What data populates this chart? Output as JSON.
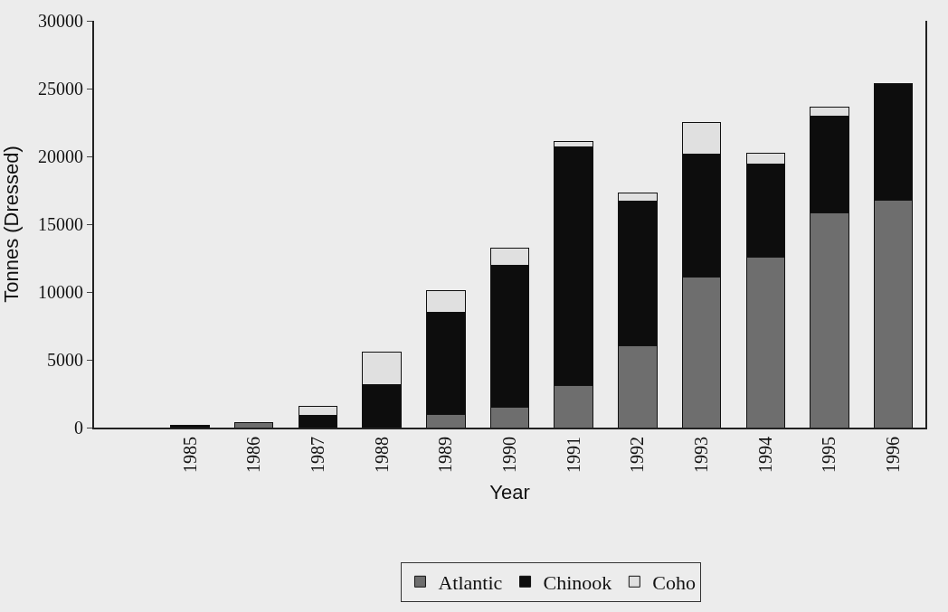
{
  "chart_data": {
    "type": "bar",
    "stacked": true,
    "xlabel": "Year",
    "ylabel": "Tonnes (Dressed)",
    "categories": [
      null,
      "1985",
      "1986",
      "1987",
      "1988",
      "1989",
      "1990",
      "1991",
      "1992",
      "1993",
      "1994",
      "1995",
      "1996"
    ],
    "series": [
      {
        "name": "Atlantic",
        "color": "#6e6e6e",
        "values": [
          null,
          null,
          400,
          null,
          null,
          1000,
          1500,
          3070,
          6050,
          11100,
          12600,
          15850,
          16800
        ]
      },
      {
        "name": "Chinook",
        "color": "#0d0d0d",
        "values": [
          null,
          150,
          null,
          900,
          3150,
          7500,
          10450,
          17630,
          10670,
          9100,
          6850,
          7100,
          8550
        ]
      },
      {
        "name": "Coho",
        "color": "#e0e0e0",
        "values": [
          null,
          null,
          null,
          650,
          2400,
          1600,
          1300,
          400,
          600,
          2300,
          800,
          700,
          null
        ]
      }
    ],
    "ylim": [
      0,
      30000
    ],
    "yticks": [
      0,
      5000,
      10000,
      15000,
      20000,
      25000,
      30000
    ],
    "grid": false,
    "legend": "bottom"
  }
}
